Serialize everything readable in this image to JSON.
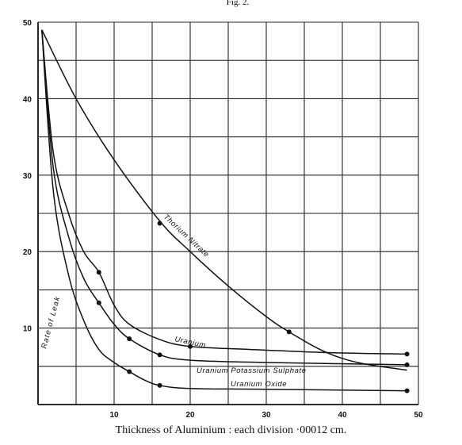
{
  "figure_number": "Fig. 2.",
  "chart_data": {
    "type": "line",
    "xlabel": "Thickness of Aluminium : each division ·00012 cm.",
    "ylabel": "Rate of Leak",
    "xlim": [
      0,
      50
    ],
    "ylim": [
      0,
      50
    ],
    "x_ticks": [
      "10",
      "20",
      "30",
      "40",
      "50"
    ],
    "y_ticks": [
      "10",
      "20",
      "30",
      "40",
      "50"
    ],
    "grid": true,
    "series": [
      {
        "name": "Thorium Nitrate",
        "points": [
          [
            0.5,
            49
          ],
          [
            5,
            40
          ],
          [
            10,
            32
          ],
          [
            16,
            24
          ],
          [
            20,
            20
          ],
          [
            25,
            15.5
          ],
          [
            30,
            11.5
          ],
          [
            33,
            9.5
          ],
          [
            37.5,
            7
          ],
          [
            42,
            5.5
          ],
          [
            48.5,
            4.5
          ]
        ],
        "markers": [
          [
            16,
            23.7
          ],
          [
            33,
            9.5
          ]
        ]
      },
      {
        "name": "Uranium",
        "points": [
          [
            0.5,
            49
          ],
          [
            2,
            33
          ],
          [
            4,
            25
          ],
          [
            6,
            20
          ],
          [
            8,
            17.3
          ],
          [
            10,
            13
          ],
          [
            12,
            10.5
          ],
          [
            16,
            8.5
          ],
          [
            20,
            7.6
          ],
          [
            28,
            7.2
          ],
          [
            38,
            6.8
          ],
          [
            48.5,
            6.6
          ]
        ],
        "markers": [
          [
            8,
            17.3
          ],
          [
            20,
            7.6
          ],
          [
            48.5,
            6.6
          ]
        ]
      },
      {
        "name": "Uranium Potassium Sulphate",
        "points": [
          [
            0.5,
            49
          ],
          [
            2,
            31
          ],
          [
            4,
            22
          ],
          [
            6,
            16.5
          ],
          [
            8,
            13.3
          ],
          [
            10,
            10.5
          ],
          [
            12,
            8.6
          ],
          [
            16,
            6.5
          ],
          [
            20,
            5.8
          ],
          [
            30,
            5.5
          ],
          [
            48.5,
            5.2
          ]
        ],
        "markers": [
          [
            8,
            13.3
          ],
          [
            12,
            8.6
          ],
          [
            16,
            6.5
          ],
          [
            48.5,
            5.2
          ]
        ]
      },
      {
        "name": "Uranium Oxide",
        "points": [
          [
            0.5,
            49
          ],
          [
            2,
            28
          ],
          [
            4,
            17
          ],
          [
            6,
            11
          ],
          [
            8,
            7.2
          ],
          [
            10,
            5.5
          ],
          [
            12,
            4.3
          ],
          [
            14,
            3.2
          ],
          [
            16,
            2.5
          ],
          [
            20,
            2.1
          ],
          [
            30,
            2
          ],
          [
            48.5,
            1.8
          ]
        ],
        "markers": [
          [
            12,
            4.3
          ],
          [
            16,
            2.5
          ],
          [
            48.5,
            1.8
          ]
        ]
      }
    ],
    "labels": {
      "thorium": "Thorium Nitrate",
      "uranium": "Uranium",
      "ups": "Uranium Potassium Sulphate",
      "oxide": "Uranium Oxide"
    }
  }
}
